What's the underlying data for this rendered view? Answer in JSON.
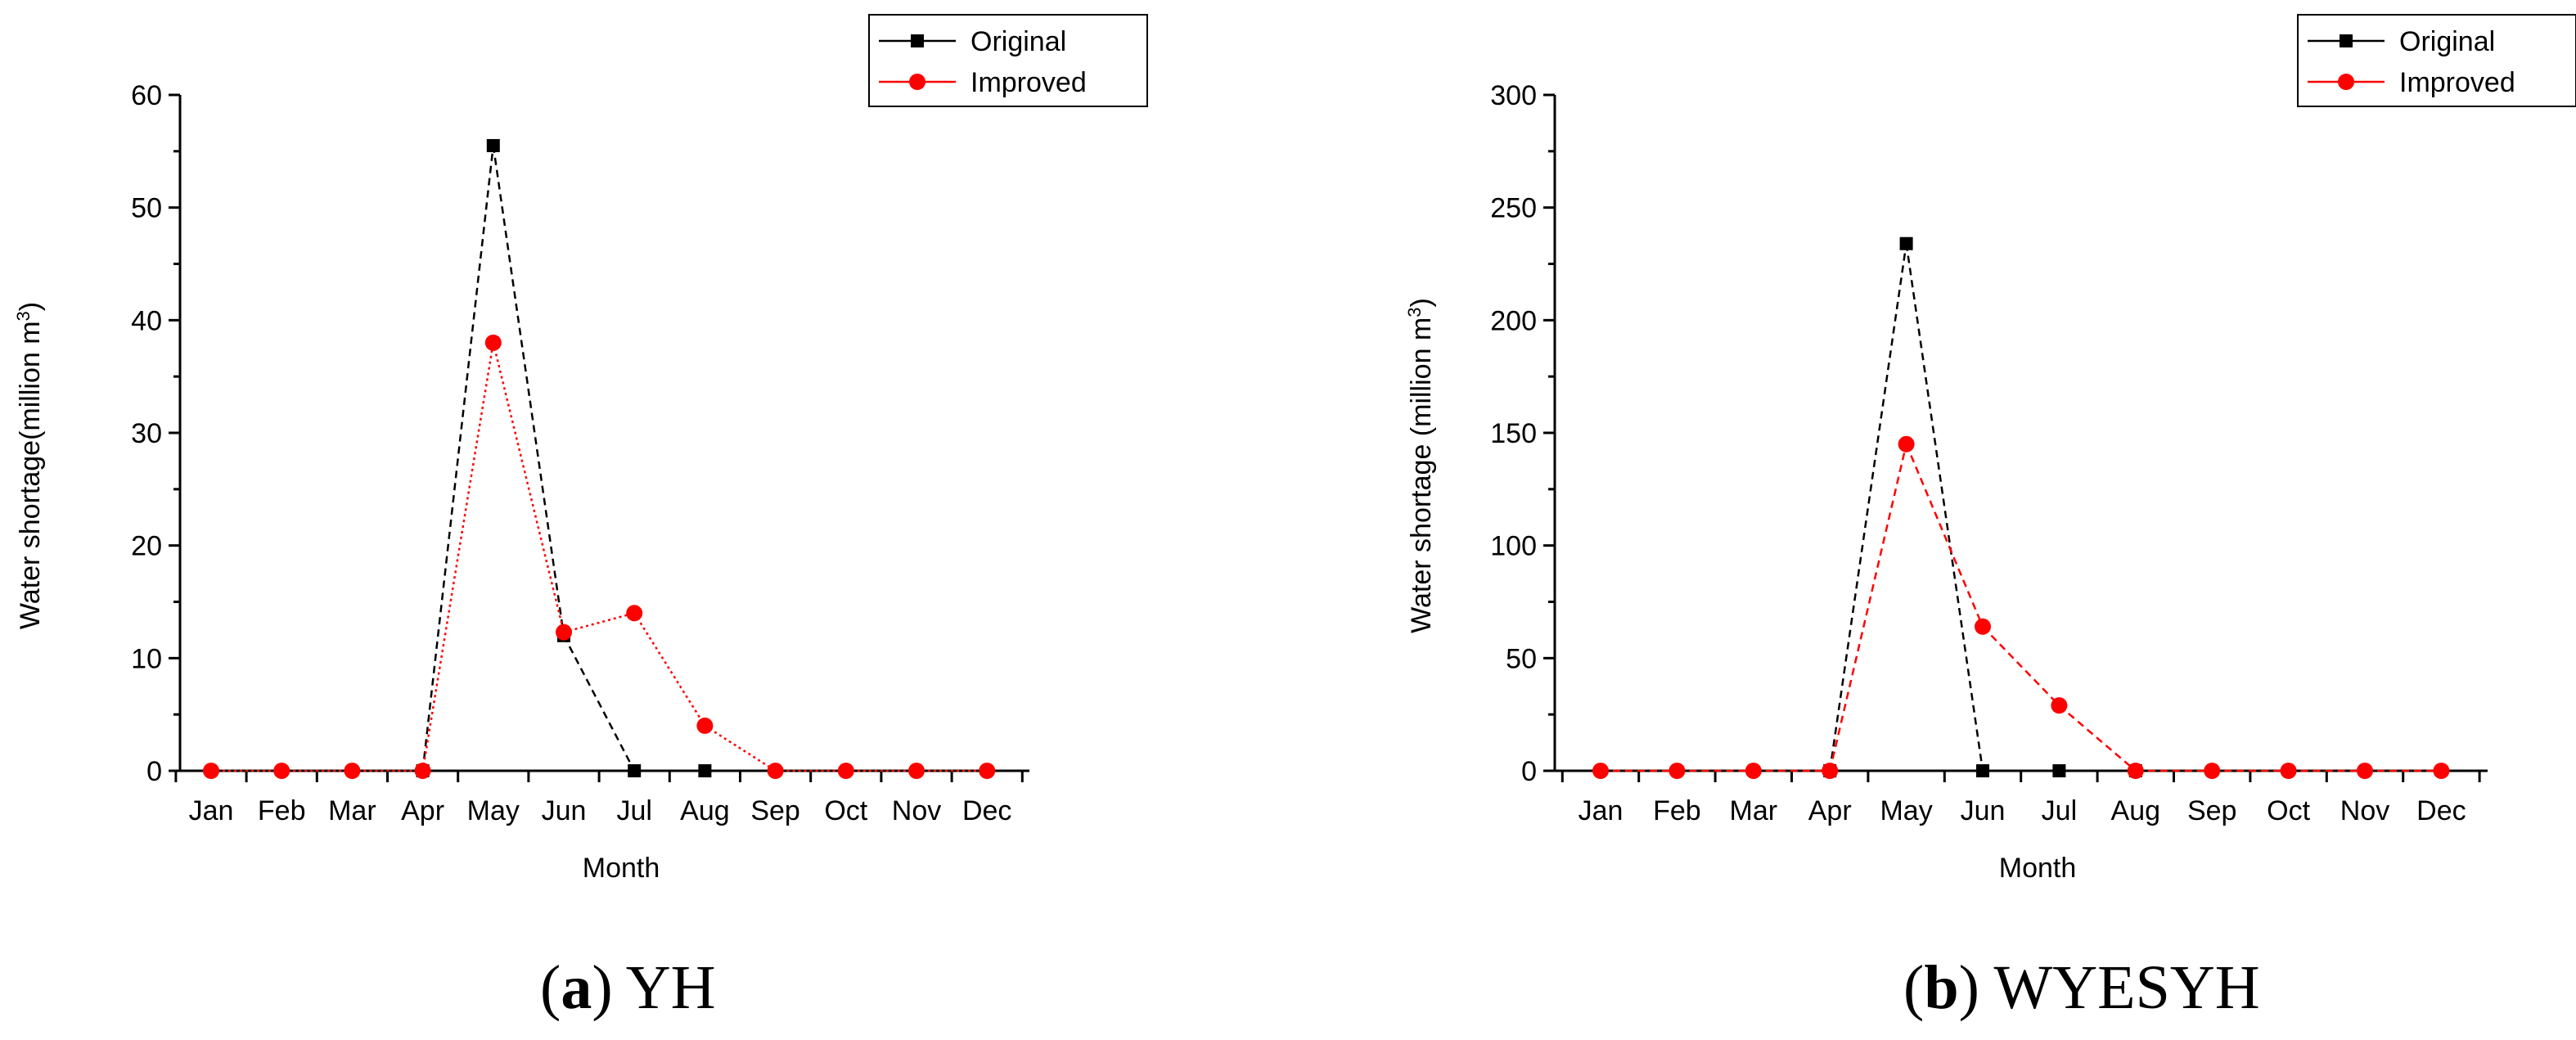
{
  "chart_data": [
    {
      "type": "line",
      "panel": "a",
      "caption_letter": "a",
      "caption_text": " YH",
      "categories": [
        "Jan",
        "Feb",
        "Mar",
        "Apr",
        "May",
        "Jun",
        "Jul",
        "Aug",
        "Sep",
        "Oct",
        "Nov",
        "Dec"
      ],
      "series": [
        {
          "name": "Original",
          "color": "#000000",
          "marker": "square",
          "line": "dashed",
          "values": [
            null,
            null,
            null,
            0,
            55.5,
            12,
            0,
            0,
            null,
            null,
            null,
            null
          ]
        },
        {
          "name": "Improved",
          "color": "#ff0000",
          "marker": "circle",
          "line": "dotted",
          "values": [
            0,
            0,
            0,
            0,
            38,
            12.3,
            14,
            4,
            0,
            0,
            0,
            0
          ]
        }
      ],
      "xlabel": "Month",
      "ylabel": "Water shortage(million m",
      "ylabel_sup": "3",
      "ylabel_end": ")",
      "ylim": [
        0,
        60
      ],
      "yticks": [
        0,
        10,
        20,
        30,
        40,
        50,
        60
      ],
      "legend_position": "top-right"
    },
    {
      "type": "line",
      "panel": "b",
      "caption_letter": "b",
      "caption_text": " WYESYH",
      "categories": [
        "Jan",
        "Feb",
        "Mar",
        "Apr",
        "May",
        "Jun",
        "Jul",
        "Aug",
        "Sep",
        "Oct",
        "Nov",
        "Dec"
      ],
      "series": [
        {
          "name": "Original",
          "color": "#000000",
          "marker": "square",
          "line": "dashed",
          "values": [
            null,
            null,
            null,
            0,
            234,
            0,
            0,
            0,
            null,
            null,
            null,
            null
          ]
        },
        {
          "name": "Improved",
          "color": "#ff0000",
          "marker": "circle",
          "line": "dashed",
          "values": [
            0,
            0,
            0,
            0,
            145,
            64,
            29,
            0,
            0,
            0,
            0,
            0
          ]
        }
      ],
      "xlabel": "Month",
      "ylabel": "Water shortage (million m",
      "ylabel_sup": "3",
      "ylabel_end": ")",
      "ylim": [
        0,
        300
      ],
      "yticks": [
        0,
        50,
        100,
        150,
        200,
        250,
        300
      ],
      "legend_position": "top-right"
    }
  ]
}
